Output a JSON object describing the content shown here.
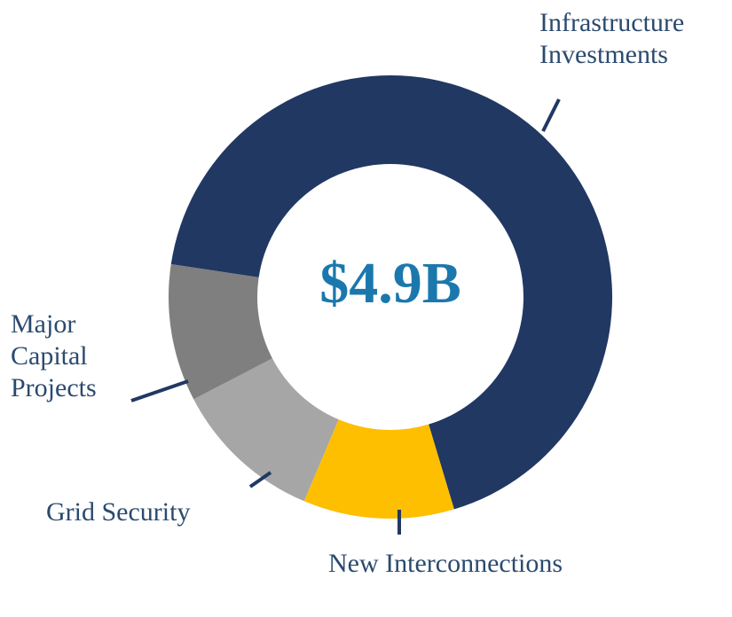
{
  "chart_data": {
    "type": "donut",
    "center_label": "$4.9B",
    "categories": [
      "Infrastructure Investments",
      "New Interconnections",
      "Grid Security",
      "Major Capital Projects"
    ],
    "values": [
      68,
      11,
      11,
      10
    ],
    "colors": [
      "#213863",
      "#fdbf00",
      "#a6a6a6",
      "#7f7f7f"
    ]
  }
}
